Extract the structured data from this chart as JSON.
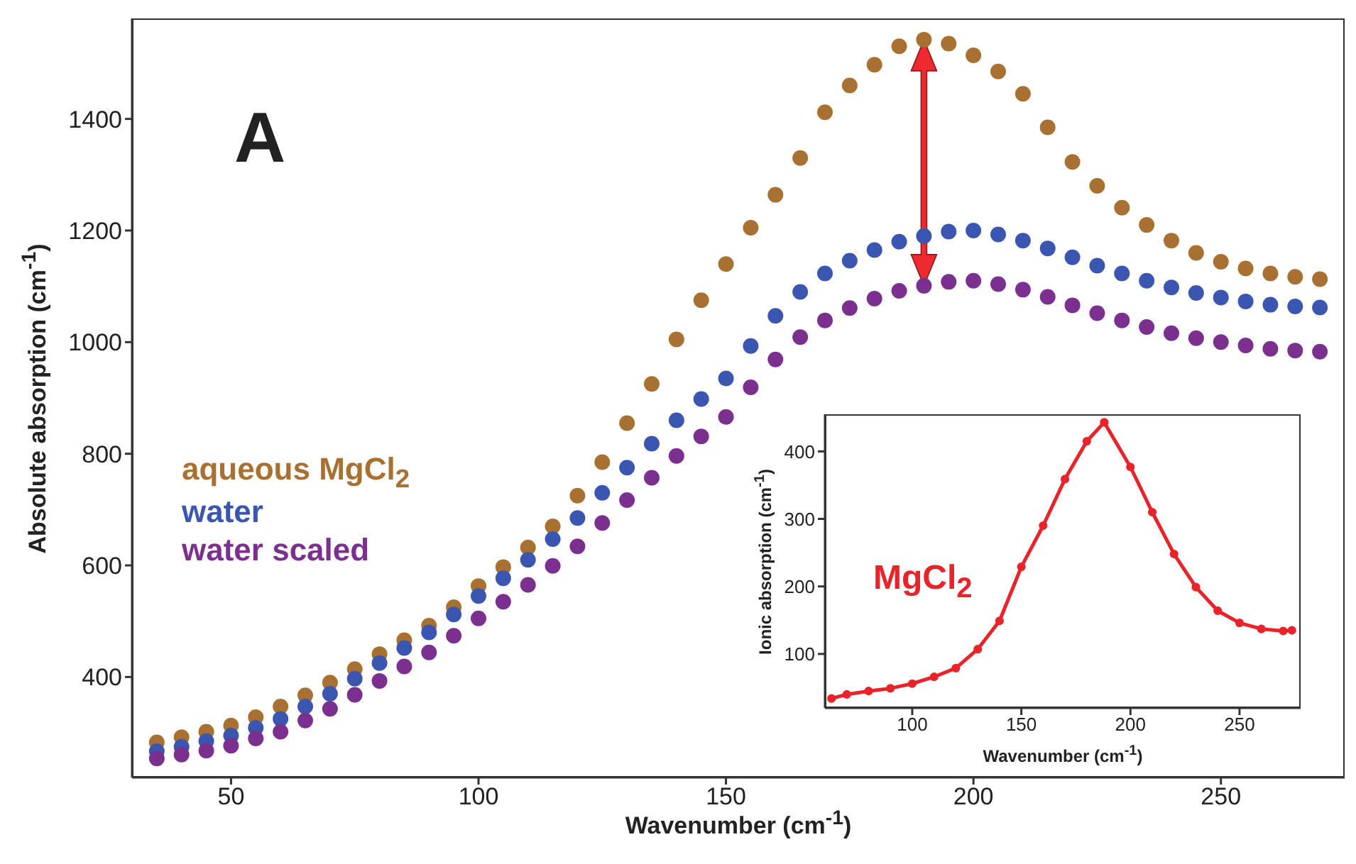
{
  "chart_data": [
    {
      "type": "scatter",
      "xlabel": "Wavenumber (cm$^{-1}$)",
      "ylabel": "Absolute absorption (cm$^{-1}$)",
      "annotations": [
        "A"
      ],
      "marker": "circle",
      "legend": "left",
      "xlim": [
        30,
        275
      ],
      "ylim": [
        220,
        1580
      ],
      "xticks": [
        50,
        100,
        150,
        200,
        250
      ],
      "yticks": [
        400,
        600,
        800,
        1000,
        1200,
        1400
      ],
      "x": [
        35,
        40,
        45,
        50,
        55,
        60,
        65,
        70,
        75,
        80,
        85,
        90,
        95,
        100,
        105,
        110,
        115,
        120,
        125,
        130,
        135,
        140,
        145,
        150,
        155,
        160,
        165,
        170,
        175,
        180,
        185,
        190,
        195,
        200,
        205,
        210,
        215,
        220,
        225,
        230,
        235,
        240,
        245,
        250,
        255,
        260,
        265,
        270
      ],
      "series": [
        {
          "name": "aqueous MgCl$_{2}$",
          "color": "#a87132",
          "values": [
            283,
            292,
            302,
            313,
            328,
            347,
            367,
            390,
            414,
            441,
            466,
            492,
            525,
            563,
            597,
            632,
            670,
            725,
            785,
            855,
            925,
            1005,
            1075,
            1140,
            1205,
            1264,
            1330,
            1412,
            1460,
            1497,
            1530,
            1542,
            1535,
            1514,
            1485,
            1445,
            1385,
            1323,
            1280,
            1241,
            1210,
            1182,
            1160,
            1144,
            1132,
            1123,
            1117,
            1113
          ]
        },
        {
          "name": "water",
          "color": "#3a56b0",
          "values": [
            267,
            275,
            285,
            295,
            309,
            325,
            347,
            370,
            397,
            425,
            452,
            480,
            512,
            545,
            577,
            610,
            647,
            685,
            730,
            775,
            818,
            860,
            898,
            935,
            993,
            1047,
            1090,
            1123,
            1146,
            1165,
            1180,
            1190,
            1198,
            1200,
            1193,
            1182,
            1168,
            1152,
            1137,
            1123,
            1110,
            1098,
            1088,
            1080,
            1073,
            1067,
            1064,
            1062
          ]
        },
        {
          "name": "water scaled",
          "color": "#7b2f8f",
          "values": [
            254,
            261,
            268,
            277,
            290,
            302,
            322,
            343,
            368,
            393,
            419,
            444,
            474,
            505,
            535,
            565,
            599,
            634,
            676,
            717,
            757,
            796,
            831,
            866,
            919,
            969,
            1009,
            1039,
            1061,
            1078,
            1092,
            1101,
            1108,
            1110,
            1104,
            1094,
            1081,
            1066,
            1052,
            1039,
            1027,
            1016,
            1007,
            1000,
            994,
            988,
            985,
            983
          ]
        }
      ]
    },
    {
      "type": "line",
      "xlabel": "Wavenumber (cm$^{-1}$)",
      "ylabel": "Ionic absorption (cm$^{-1}$)",
      "marker": "circle",
      "legend": "left",
      "xlim": [
        60,
        278
      ],
      "ylim": [
        20,
        455
      ],
      "xticks": [
        100,
        150,
        200,
        250
      ],
      "yticks": [
        100,
        200,
        300,
        400
      ],
      "x": [
        63,
        70,
        80,
        90,
        100,
        110,
        120,
        130,
        140,
        150,
        160,
        170,
        180,
        188,
        200,
        210,
        220,
        230,
        240,
        250,
        260,
        270,
        274
      ],
      "series": [
        {
          "name": "MgCl$_{2}$",
          "color": "#e8232a",
          "values": [
            34,
            40,
            45,
            49,
            56,
            66,
            79,
            107,
            149,
            229,
            290,
            359,
            415,
            443,
            377,
            310,
            248,
            199,
            164,
            146,
            137,
            134,
            135
          ]
        }
      ]
    }
  ]
}
